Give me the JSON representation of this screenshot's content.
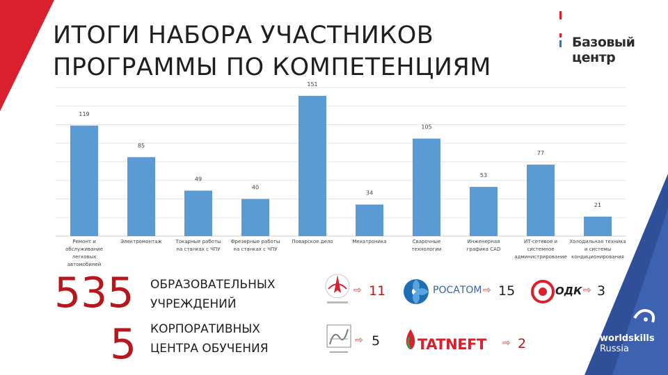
{
  "title": {
    "line1": "ИТОГИ НАБОРА УЧАСТНИКОВ",
    "line2": "ПРОГРАММЫ ПО КОМПЕТЕНЦИЯМ"
  },
  "brand": "Базовый центр",
  "colors": {
    "bar": "#5b9bd5",
    "accent": "#b5171d",
    "red": "#d9202c",
    "blue": "#4b6aaa"
  },
  "chart_data": {
    "type": "bar",
    "categories": [
      [
        "Ремонт и",
        "обслуживание",
        "легковых",
        "автомобилей"
      ],
      [
        "Электромонтаж"
      ],
      [
        "Токарные работы",
        "на станках с ЧПУ"
      ],
      [
        "Фрезерные работы",
        "на станках с ЧПУ"
      ],
      [
        "Поварское дело"
      ],
      [
        "Мехатроника"
      ],
      [
        "Сварочные",
        "технологии"
      ],
      [
        "Инженерная",
        "графика CAD"
      ],
      [
        "ИТ-сетевое и",
        "системное",
        "администрирование"
      ],
      [
        "Холодильная техника",
        "и системы",
        "кондиционирования"
      ]
    ],
    "values": [
      119,
      85,
      49,
      40,
      151,
      34,
      105,
      53,
      77,
      21
    ],
    "ylim": [
      0,
      160
    ],
    "grid": true
  },
  "stats": {
    "institutions_count": "535",
    "institutions_label1": "ОБРАЗОВАТЕЛЬНЫХ",
    "institutions_label2": "УЧРЕЖДЕНИЙ",
    "corporate_count": "5",
    "corporate_label1": "КОРПОРАТИВНЫХ",
    "corporate_label2": "ЦЕНТРА ОБУЧЕНИЯ"
  },
  "partners": {
    "roscosmos_count": "11",
    "rosatom_name": "РОСАТОМ",
    "rosatom_count": "15",
    "odk_name": "ОДК",
    "odk_count": "3",
    "chtz_count": "5",
    "tatneft_name": "TATNEFT",
    "tatneft_count": "2"
  },
  "worldskills": {
    "line1": "worldskills",
    "line2": "Russia"
  }
}
